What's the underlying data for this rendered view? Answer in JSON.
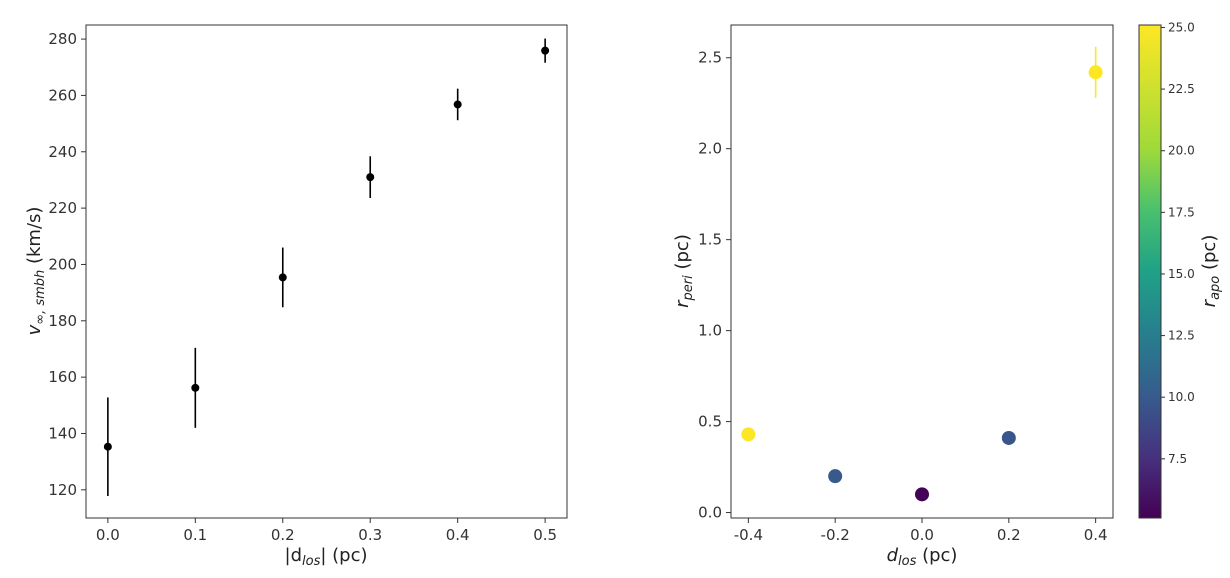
{
  "chart_data": [
    {
      "type": "scatter",
      "title": "",
      "xlabel": {
        "pre": "|d",
        "sub": "los",
        "post": "| (pc)"
      },
      "ylabel": {
        "pre": "v",
        "sub": "∞, smbh",
        "post": " (km/s)"
      },
      "xlim": [
        -0.025,
        0.525
      ],
      "ylim": [
        110,
        285
      ],
      "xticks": [
        "0.0",
        "0.1",
        "0.2",
        "0.3",
        "0.4",
        "0.5"
      ],
      "yticks": [
        "120",
        "140",
        "160",
        "180",
        "200",
        "220",
        "240",
        "260",
        "280"
      ],
      "grid": false,
      "marker_color": "#000000",
      "points": [
        {
          "x": 0.0,
          "y": 135.3,
          "yerr": 17.5
        },
        {
          "x": 0.1,
          "y": 156.2,
          "yerr": 14.2
        },
        {
          "x": 0.2,
          "y": 195.4,
          "yerr": 10.6
        },
        {
          "x": 0.3,
          "y": 231.0,
          "yerr": 7.4
        },
        {
          "x": 0.4,
          "y": 256.8,
          "yerr": 5.6
        },
        {
          "x": 0.5,
          "y": 275.9,
          "yerr": 4.3
        }
      ]
    },
    {
      "type": "scatter",
      "title": "",
      "xlabel": {
        "pre": "d",
        "sub": "los",
        "post": " (pc)"
      },
      "ylabel": {
        "pre": "r",
        "sub": "peri",
        "post": " (pc)"
      },
      "xlim": [
        -0.44,
        0.44
      ],
      "ylim": [
        -0.03,
        2.68
      ],
      "xticks": [
        "-0.4",
        "-0.2",
        "0.0",
        "0.2",
        "0.4"
      ],
      "yticks": [
        "0.0",
        "0.5",
        "1.0",
        "1.5",
        "2.0",
        "2.5"
      ],
      "grid": false,
      "points": [
        {
          "x": -0.4,
          "y": 0.43,
          "c": 25.0
        },
        {
          "x": -0.2,
          "y": 0.2,
          "c": 9.9
        },
        {
          "x": 0.0,
          "y": 0.1,
          "c": 5.2
        },
        {
          "x": 0.2,
          "y": 0.41,
          "c": 9.7
        },
        {
          "x": 0.4,
          "y": 2.42,
          "c": 25.2,
          "yerr": 0.14
        }
      ],
      "colorbar": {
        "label": {
          "pre": "r",
          "sub": "apo",
          "post": " (pc)"
        },
        "colormap": "viridis",
        "range": [
          5.1,
          25.1
        ],
        "ticks": [
          "7.5",
          "10.0",
          "12.5",
          "15.0",
          "17.5",
          "20.0",
          "22.5",
          "25.0"
        ]
      }
    }
  ]
}
